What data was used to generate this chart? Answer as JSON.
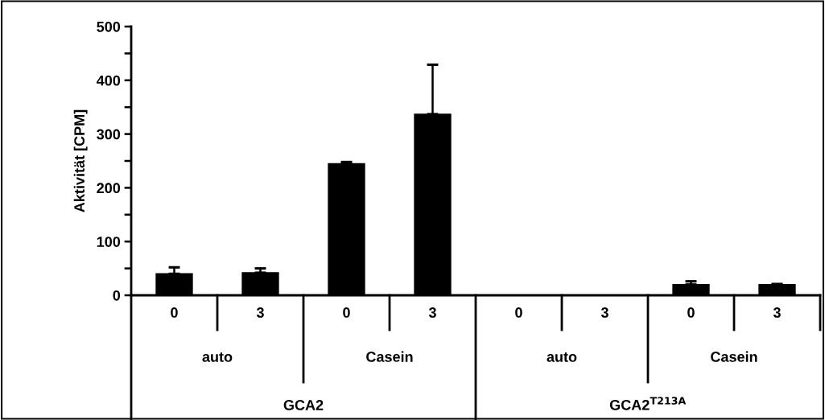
{
  "chart_data": {
    "type": "bar",
    "ylabel": "Aktivität [CPM]",
    "categories": [
      "0",
      "3",
      "0",
      "3",
      "0",
      "3",
      "0",
      "3"
    ],
    "values": [
      40,
      42,
      245,
      337,
      0,
      0,
      20,
      20
    ],
    "errors": [
      12,
      8,
      3,
      92,
      null,
      null,
      6,
      1
    ],
    "color": "#000000",
    "ylim": [
      0,
      500
    ],
    "yticks": [
      0,
      {
        "value": 50,
        "label": null
      },
      100,
      {
        "value": 150,
        "label": null
      },
      200,
      {
        "value": 250,
        "label": null
      },
      300,
      {
        "value": 350,
        "label": null
      },
      400,
      {
        "value": 450,
        "label": null
      },
      500
    ],
    "grid": false,
    "annotations": [
      "auto",
      "Casein",
      "auto",
      "Casein",
      "GCA2",
      "GCA2$^{T213A}$"
    ]
  }
}
